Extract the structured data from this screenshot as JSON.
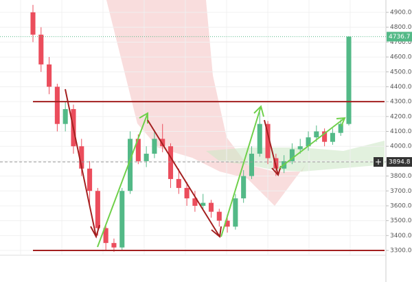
{
  "chart_data": {
    "type": "candlestick",
    "colors": {
      "up": "#53b987",
      "down": "#eb4d5c"
    },
    "open": [
      4900,
      4750,
      4550,
      4400,
      4150,
      4250,
      4000,
      3850,
      3700,
      3450,
      3350,
      3320,
      3700,
      4050,
      3900,
      3950,
      4050,
      4000,
      3780,
      3720,
      3650,
      3600,
      3620,
      3560,
      3500,
      3460,
      3650,
      3800,
      3950,
      4150,
      3920,
      3850,
      3900,
      3980,
      4000,
      4060,
      4100,
      4030,
      4090,
      4150
    ],
    "high": [
      4950,
      4800,
      4600,
      4420,
      4300,
      4280,
      4050,
      3900,
      3720,
      3480,
      3380,
      3720,
      4100,
      4080,
      4000,
      4100,
      4150,
      4020,
      3850,
      3760,
      3700,
      3680,
      3640,
      3580,
      3540,
      3680,
      3840,
      4000,
      4230,
      4170,
      3950,
      3940,
      4020,
      4050,
      4100,
      4140,
      4120,
      4120,
      4180,
      4740
    ],
    "low": [
      4700,
      4500,
      4350,
      4100,
      4100,
      3950,
      3800,
      3600,
      3400,
      3300,
      3290,
      3300,
      3680,
      3880,
      3860,
      3920,
      3960,
      3720,
      3680,
      3600,
      3560,
      3580,
      3520,
      3460,
      3420,
      3440,
      3620,
      3780,
      3930,
      3880,
      3800,
      3820,
      3880,
      3950,
      3970,
      4030,
      4000,
      4010,
      4070,
      4140
    ],
    "close": [
      4750,
      4550,
      4400,
      4150,
      4250,
      4000,
      3850,
      3700,
      3450,
      3350,
      3320,
      3700,
      4050,
      3900,
      3950,
      4050,
      4000,
      3780,
      3720,
      3650,
      3600,
      3620,
      3560,
      3500,
      3460,
      3650,
      3800,
      3950,
      4150,
      3920,
      3850,
      3900,
      3980,
      4000,
      4060,
      4100,
      4030,
      4090,
      4150,
      4737
    ],
    "levels": [
      4300,
      3300
    ],
    "level_color": "#a31f1f",
    "last_price": 4736.7,
    "crosshair_price": 3894.8,
    "ylim": [
      3277,
      4983
    ],
    "yticks": [
      {
        "value": 3300,
        "label": "3300.0"
      },
      {
        "value": 3400,
        "label": "3400.0"
      },
      {
        "value": 3500,
        "label": "3500.0"
      },
      {
        "value": 3600,
        "label": "3600.0"
      },
      {
        "value": 3700,
        "label": "3700.0"
      },
      {
        "value": 3800,
        "label": "3800.0"
      },
      {
        "value": 3900,
        "label": "3900.0"
      },
      {
        "value": 4000,
        "label": "4000.0"
      },
      {
        "value": 4100,
        "label": "4100.0"
      },
      {
        "value": 4200,
        "label": "4200.0"
      },
      {
        "value": 4300,
        "label": "4300.0"
      },
      {
        "value": 4400,
        "label": "4400.0"
      },
      {
        "value": 4500,
        "label": "4500.0"
      },
      {
        "value": 4600,
        "label": "4600.0"
      },
      {
        "value": 4700,
        "label": "4700.0"
      },
      {
        "value": 4800,
        "label": "4800.0"
      },
      {
        "value": 4900,
        "label": "4900.0"
      }
    ],
    "grid": true
  }
}
